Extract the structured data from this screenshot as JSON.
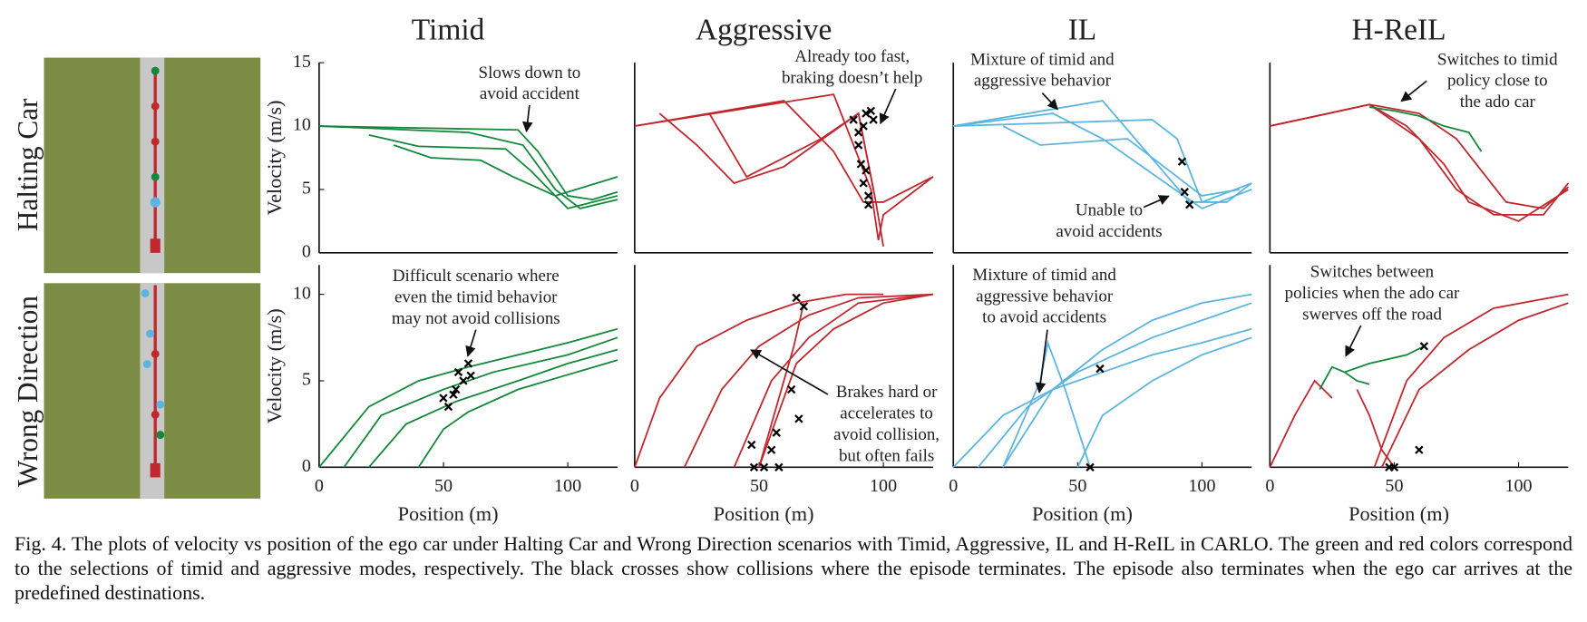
{
  "figure": {
    "row_labels": [
      "Halting Car",
      "Wrong Direction"
    ],
    "caption": "Fig. 4.   The plots of velocity vs position of the ego car under Halting Car and Wrong Direction scenarios with Timid, Aggressive, IL and H-ReIL in CARLO. The green and red colors correspond to the selections of timid and aggressive modes, respectively. The black crosses show collisions where the episode terminates. The episode also terminates when the ego car arrives at the predefined destinations."
  },
  "chart_data": [
    {
      "type": "line",
      "title": "Timid",
      "ylabel": "Velocity (m/s)",
      "xlim": [
        0,
        120
      ],
      "ylim": [
        0,
        15
      ],
      "yticks": [
        0,
        5,
        10,
        15
      ],
      "series": [
        {
          "color": "#12883a",
          "x": [
            0,
            80,
            88,
            100,
            110,
            120
          ],
          "values": [
            10,
            9.7,
            8,
            4.5,
            4.2,
            4.8
          ]
        },
        {
          "color": "#12883a",
          "x": [
            20,
            40,
            75,
            85,
            100,
            120
          ],
          "values": [
            9.3,
            8.4,
            8.2,
            6.5,
            3.5,
            4.5
          ]
        },
        {
          "color": "#12883a",
          "x": [
            30,
            45,
            65,
            78,
            95,
            120
          ],
          "values": [
            8.5,
            7.5,
            7.3,
            6,
            4.5,
            6
          ]
        },
        {
          "color": "#12883a",
          "x": [
            0,
            60,
            82,
            95,
            105,
            120
          ],
          "values": [
            10,
            9.5,
            8.5,
            5,
            3.5,
            4.2
          ]
        }
      ],
      "annotations": [
        [
          "Slows down to",
          "avoid accident"
        ]
      ]
    },
    {
      "type": "line",
      "title": "Aggressive",
      "xlim": [
        0,
        120
      ],
      "ylim": [
        0,
        15
      ],
      "series": [
        {
          "color": "#c1272d",
          "x": [
            0,
            80,
            95,
            98,
            100,
            120
          ],
          "values": [
            10,
            12.5,
            5,
            1,
            3,
            6
          ]
        },
        {
          "color": "#c1272d",
          "x": [
            0,
            60,
            80,
            92,
            100,
            120
          ],
          "values": [
            10,
            12,
            8,
            4,
            4,
            6
          ]
        },
        {
          "color": "#c1272d",
          "x": [
            10,
            25,
            40,
            60,
            90,
            96
          ],
          "values": [
            11,
            8.5,
            5.5,
            6.8,
            11,
            5
          ]
        },
        {
          "color": "#c1272d",
          "x": [
            30,
            45,
            75,
            90,
            97,
            100
          ],
          "values": [
            11,
            6,
            9,
            11,
            4,
            0.5
          ]
        }
      ],
      "collisions": {
        "x": [
          88,
          90,
          92,
          93,
          95,
          96,
          90,
          91,
          92,
          94,
          93,
          94
        ],
        "values": [
          10.5,
          9.5,
          10,
          11,
          11.2,
          10.5,
          8.5,
          7,
          5.5,
          4.5,
          6.5,
          3.8
        ]
      },
      "annotations": [
        [
          "Already too fast,",
          "braking doesn’t help"
        ]
      ]
    },
    {
      "type": "line",
      "title": "IL",
      "xlim": [
        0,
        120
      ],
      "ylim": [
        0,
        15
      ],
      "series": [
        {
          "color": "#5bb5e0",
          "x": [
            0,
            60,
            95,
            110,
            120
          ],
          "values": [
            10,
            12,
            4,
            4,
            5.5
          ]
        },
        {
          "color": "#5bb5e0",
          "x": [
            0,
            40,
            60,
            100,
            120
          ],
          "values": [
            10,
            11,
            9,
            3.5,
            5
          ]
        },
        {
          "color": "#5bb5e0",
          "x": [
            20,
            35,
            70,
            100,
            115
          ],
          "values": [
            10,
            8.5,
            9,
            4.5,
            5
          ]
        },
        {
          "color": "#5bb5e0",
          "x": [
            0,
            80,
            90,
            100,
            120
          ],
          "values": [
            10,
            10.5,
            9,
            4,
            5.5
          ]
        }
      ],
      "collisions": {
        "x": [
          92,
          93,
          95
        ],
        "values": [
          7.2,
          4.8,
          3.8
        ]
      },
      "annotations": [
        [
          "Mixture of timid and",
          "aggressive behavior"
        ],
        [
          "Unable to",
          "avoid accidents"
        ]
      ]
    },
    {
      "type": "line",
      "title": "H-ReIL",
      "xlim": [
        0,
        120
      ],
      "ylim": [
        0,
        15
      ],
      "series": [
        {
          "color": "#c1272d",
          "x": [
            0,
            40,
            60,
            75,
            90,
            110,
            120
          ],
          "values": [
            10,
            11.7,
            9,
            5,
            3,
            3,
            5.5
          ]
        },
        {
          "color": "#c1272d",
          "x": [
            0,
            40,
            55,
            70,
            80,
            100,
            120
          ],
          "values": [
            10,
            11.7,
            10,
            7,
            4,
            2.5,
            5
          ]
        },
        {
          "color": "#c1272d",
          "x": [
            0,
            40,
            60,
            75,
            95,
            110,
            120
          ],
          "values": [
            10,
            11.7,
            11,
            9,
            4,
            3.5,
            5.2
          ]
        },
        {
          "color": "#12883a",
          "x": [
            40,
            50,
            60,
            70,
            80,
            85
          ],
          "values": [
            11.5,
            11.2,
            10.8,
            10,
            9.5,
            8
          ]
        }
      ],
      "annotations": [
        [
          "Switches to timid",
          "policy close to",
          "the ado car"
        ]
      ]
    },
    {
      "type": "line",
      "ylabel": "Velocity (m/s)",
      "xlabel": "Position (m)",
      "xlim": [
        0,
        120
      ],
      "ylim": [
        0,
        11.7
      ],
      "xticks": [
        0,
        50,
        100
      ],
      "yticks": [
        0,
        5,
        10
      ],
      "series": [
        {
          "color": "#12883a",
          "x": [
            0,
            20,
            40,
            60,
            80,
            100,
            120
          ],
          "values": [
            0,
            3.5,
            5,
            5.8,
            6.5,
            7.2,
            8
          ]
        },
        {
          "color": "#12883a",
          "x": [
            10,
            25,
            50,
            70,
            100,
            120
          ],
          "values": [
            0,
            3,
            4.5,
            5.5,
            6.5,
            7.5
          ]
        },
        {
          "color": "#12883a",
          "x": [
            20,
            35,
            55,
            80,
            100,
            120
          ],
          "values": [
            0,
            2.5,
            3.8,
            5,
            6,
            6.8
          ]
        },
        {
          "color": "#12883a",
          "x": [
            40,
            50,
            60,
            80,
            120
          ],
          "values": [
            0,
            2.2,
            3.2,
            4.5,
            6.2
          ]
        }
      ],
      "collisions": {
        "x": [
          50,
          52,
          55,
          58,
          60,
          56,
          54,
          61
        ],
        "values": [
          4,
          3.5,
          4.5,
          5,
          6,
          5.5,
          4.2,
          5.3
        ]
      },
      "annotations": [
        [
          "Difficult scenario where",
          "even the timid behavior",
          "may not avoid collisions"
        ]
      ]
    },
    {
      "type": "line",
      "xlabel": "Position (m)",
      "xlim": [
        0,
        120
      ],
      "ylim": [
        0,
        11.7
      ],
      "xticks": [
        0,
        50,
        100
      ],
      "series": [
        {
          "color": "#c1272d",
          "x": [
            0,
            10,
            25,
            45,
            65,
            85,
            100
          ],
          "values": [
            0,
            4,
            7,
            8.5,
            9.5,
            10,
            10
          ]
        },
        {
          "color": "#c1272d",
          "x": [
            20,
            35,
            50,
            70,
            90,
            120
          ],
          "values": [
            0,
            4.5,
            7,
            8.8,
            9.8,
            10
          ]
        },
        {
          "color": "#c1272d",
          "x": [
            40,
            55,
            70,
            90,
            120
          ],
          "values": [
            0,
            5,
            7.5,
            9.5,
            10
          ]
        },
        {
          "color": "#c1272d",
          "x": [
            68,
            64,
            58,
            52,
            50
          ],
          "values": [
            9.5,
            7,
            4,
            1,
            0
          ]
        },
        {
          "color": "#c1272d",
          "x": [
            50,
            65,
            80,
            100,
            120
          ],
          "values": [
            0,
            6,
            8,
            9.5,
            10
          ]
        }
      ],
      "collisions": {
        "x": [
          48,
          52,
          55,
          57,
          58,
          65,
          68,
          63,
          66,
          47
        ],
        "values": [
          0,
          0,
          1,
          2,
          0,
          9.8,
          9.3,
          4.5,
          2.8,
          1.3
        ]
      },
      "annotations": [
        [
          "Brakes hard or",
          "accelerates to",
          "avoid collision,",
          "but often fails"
        ]
      ]
    },
    {
      "type": "line",
      "xlabel": "Position (m)",
      "xlim": [
        0,
        120
      ],
      "ylim": [
        0,
        11.7
      ],
      "xticks": [
        0,
        50,
        100
      ],
      "series": [
        {
          "color": "#5bb5e0",
          "x": [
            0,
            20,
            40,
            60,
            80,
            100,
            120
          ],
          "values": [
            0,
            3,
            4.5,
            5.5,
            6.5,
            7.2,
            8
          ]
        },
        {
          "color": "#5bb5e0",
          "x": [
            10,
            30,
            50,
            80,
            100,
            120
          ],
          "values": [
            0,
            3.5,
            5.5,
            7.5,
            8.5,
            9.5
          ]
        },
        {
          "color": "#5bb5e0",
          "x": [
            20,
            40,
            60,
            80,
            100,
            120
          ],
          "values": [
            0,
            4.5,
            6.8,
            8.5,
            9.5,
            10
          ]
        },
        {
          "color": "#5bb5e0",
          "x": [
            20,
            35,
            38,
            45,
            55
          ],
          "values": [
            0,
            5,
            7.2,
            4.5,
            0
          ]
        },
        {
          "color": "#5bb5e0",
          "x": [
            50,
            60,
            80,
            100,
            120
          ],
          "values": [
            0,
            3,
            5,
            6.5,
            7.5
          ]
        }
      ],
      "collisions": {
        "x": [
          55,
          59
        ],
        "values": [
          0,
          5.7
        ]
      },
      "annotations": [
        [
          "Mixture of timid and",
          "aggressive behavior",
          "to avoid accidents"
        ]
      ]
    },
    {
      "type": "line",
      "xlabel": "Position (m)",
      "xlim": [
        0,
        120
      ],
      "ylim": [
        0,
        11.7
      ],
      "xticks": [
        0,
        50,
        100
      ],
      "series": [
        {
          "color": "#c1272d",
          "x": [
            0,
            10,
            18,
            25
          ],
          "values": [
            0,
            3,
            5,
            4
          ]
        },
        {
          "color": "#c1272d",
          "x": [
            35,
            40,
            45,
            50
          ],
          "values": [
            4.5,
            3,
            1,
            0
          ]
        },
        {
          "color": "#c1272d",
          "x": [
            42,
            55,
            70,
            90,
            120
          ],
          "values": [
            0,
            5,
            7.5,
            9.2,
            10
          ]
        },
        {
          "color": "#c1272d",
          "x": [
            45,
            60,
            80,
            100,
            120
          ],
          "values": [
            0,
            4.5,
            6.8,
            8.5,
            9.5
          ]
        },
        {
          "color": "#12883a",
          "x": [
            20,
            25,
            30,
            35,
            40
          ],
          "values": [
            4.5,
            5.8,
            5.5,
            5,
            4.8
          ]
        },
        {
          "color": "#12883a",
          "x": [
            30,
            40,
            55,
            62
          ],
          "values": [
            5.5,
            6,
            6.5,
            7
          ]
        }
      ],
      "collisions": {
        "x": [
          48,
          50,
          62,
          60
        ],
        "values": [
          0,
          0,
          7,
          1
        ]
      },
      "annotations": [
        [
          "Switches between",
          "policies when the ado car",
          "swerves off the road"
        ]
      ]
    }
  ]
}
